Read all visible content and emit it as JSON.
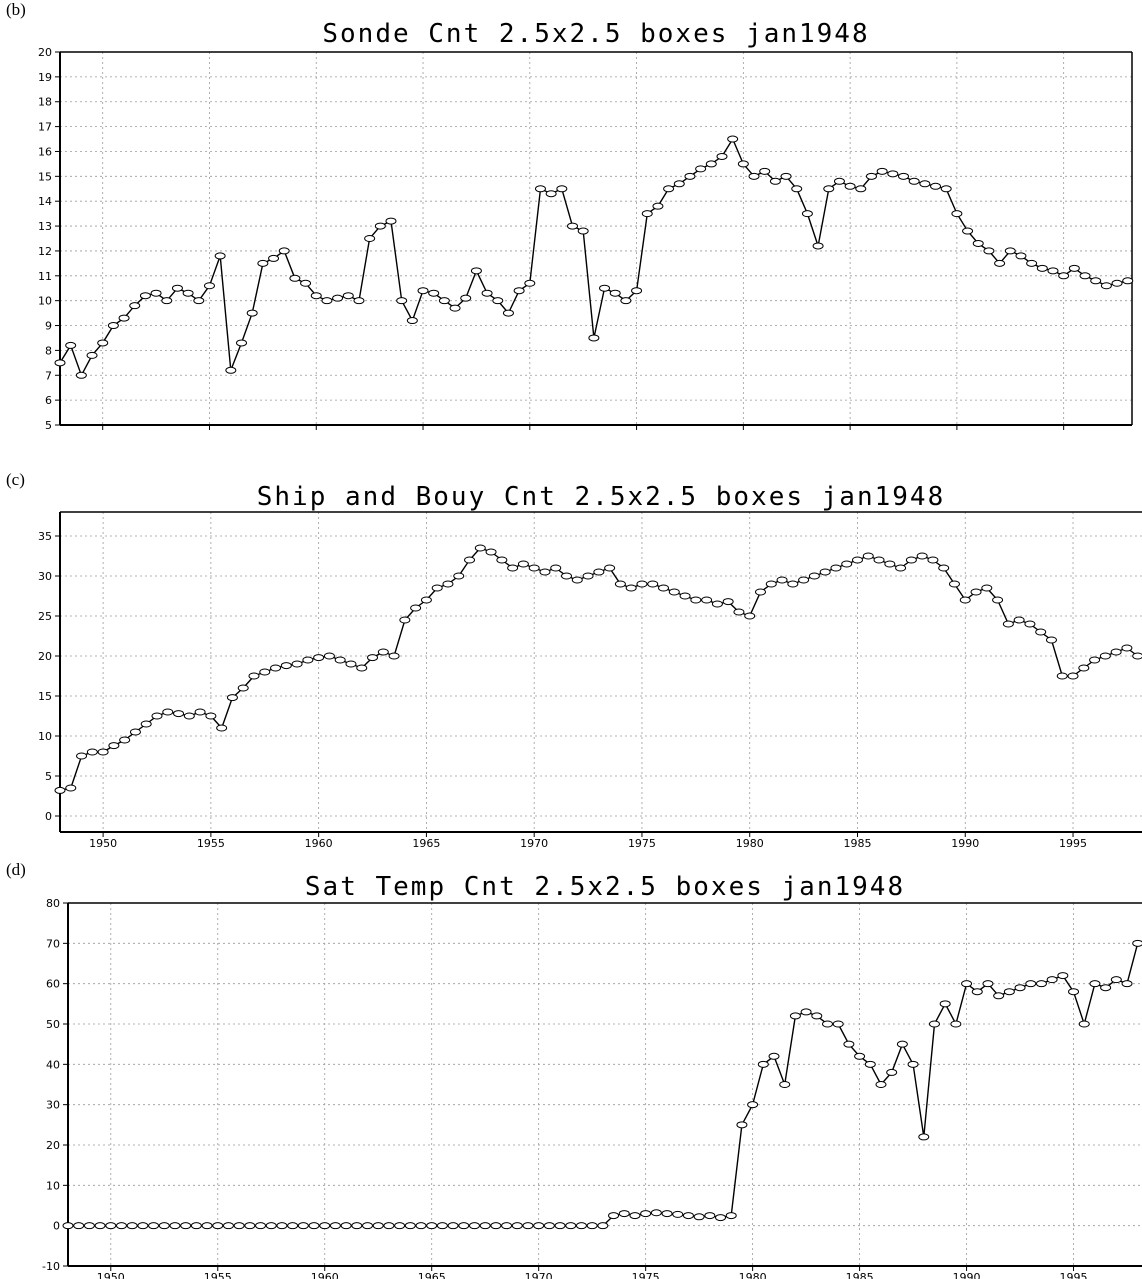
{
  "panels": {
    "b": {
      "label": "(b)"
    },
    "c": {
      "label": "(c)"
    },
    "d": {
      "label": "(d)"
    }
  },
  "chart_data": [
    {
      "type": "line",
      "title": "Sonde Cnt 2.5x2.5 boxes jan1948",
      "xlabel": "",
      "ylabel": "",
      "xlim": [
        1948,
        1998.2
      ],
      "ylim": [
        5,
        20
      ],
      "xticks": [
        1950,
        1955,
        1960,
        1965,
        1970,
        1975,
        1980,
        1985,
        1990,
        1995
      ],
      "yticks": [
        5,
        6,
        7,
        8,
        9,
        10,
        11,
        12,
        13,
        14,
        15,
        16,
        17,
        18,
        19,
        20
      ],
      "grid": true,
      "marker": "open-circle",
      "x": [
        1948.0,
        1948.5,
        1949.0,
        1949.5,
        1950.0,
        1950.5,
        1951.0,
        1951.5,
        1952.0,
        1952.5,
        1953.0,
        1953.5,
        1954.0,
        1954.5,
        1955.0,
        1955.5,
        1956.0,
        1956.5,
        1957.0,
        1957.5,
        1958.0,
        1958.5,
        1959.0,
        1959.5,
        1960.0,
        1960.5,
        1961.0,
        1961.5,
        1962.0,
        1962.5,
        1963.0,
        1963.5,
        1964.0,
        1964.5,
        1965.0,
        1965.5,
        1966.0,
        1966.5,
        1967.0,
        1967.5,
        1968.0,
        1968.5,
        1969.0,
        1969.5,
        1970.0,
        1970.5,
        1971.0,
        1971.5,
        1972.0,
        1972.5,
        1973.0,
        1973.5,
        1974.0,
        1974.5,
        1975.0,
        1975.5,
        1976.0,
        1976.5,
        1977.0,
        1977.5,
        1978.0,
        1978.5,
        1979.0,
        1979.5,
        1980.0,
        1980.5,
        1981.0,
        1981.5,
        1982.0,
        1982.5,
        1983.0,
        1983.5,
        1984.0,
        1984.5,
        1985.0,
        1985.5,
        1986.0,
        1986.5,
        1987.0,
        1987.5,
        1988.0,
        1988.5,
        1989.0,
        1989.5,
        1990.0,
        1990.5,
        1991.0,
        1991.5,
        1992.0,
        1992.5,
        1993.0,
        1993.5,
        1994.0,
        1994.5,
        1995.0,
        1995.5,
        1996.0,
        1996.5,
        1997.0,
        1997.5,
        1998.0
      ],
      "y": [
        7.5,
        8.2,
        7.0,
        7.8,
        8.3,
        9.0,
        9.3,
        9.8,
        10.2,
        10.3,
        10.0,
        10.5,
        10.3,
        10.0,
        10.6,
        11.8,
        7.2,
        8.3,
        9.5,
        11.5,
        11.7,
        12.0,
        10.9,
        10.7,
        10.2,
        10.0,
        10.1,
        10.2,
        10.0,
        12.5,
        13.0,
        13.2,
        10.0,
        9.2,
        10.4,
        10.3,
        10.0,
        9.7,
        10.1,
        11.2,
        10.3,
        10.0,
        9.5,
        10.4,
        10.7,
        14.5,
        14.3,
        14.5,
        13.0,
        12.8,
        8.5,
        10.5,
        10.3,
        10.0,
        10.4,
        13.5,
        13.8,
        14.5,
        14.7,
        15.0,
        15.3,
        15.5,
        15.8,
        16.5,
        15.5,
        15.0,
        15.2,
        14.8,
        15.0,
        14.5,
        13.5,
        12.2,
        14.5,
        14.8,
        14.6,
        14.5,
        15.0,
        15.2,
        15.1,
        15.0,
        14.8,
        14.7,
        14.6,
        14.5,
        13.5,
        12.8,
        12.3,
        12.0,
        11.5,
        12.0,
        11.8,
        11.5,
        11.3,
        11.2,
        11.0,
        11.3,
        11.0,
        10.8,
        10.6,
        10.7,
        10.8
      ]
    },
    {
      "type": "line",
      "title": "Ship and Bouy Cnt 2.5x2.5 boxes jan1948",
      "xlabel": "",
      "ylabel": "",
      "xlim": [
        1948,
        1998.2
      ],
      "ylim": [
        -2,
        38
      ],
      "xticks": [
        1950,
        1955,
        1960,
        1965,
        1970,
        1975,
        1980,
        1985,
        1990,
        1995
      ],
      "yticks": [
        0,
        5,
        10,
        15,
        20,
        25,
        30,
        35
      ],
      "grid": true,
      "marker": "open-circle",
      "x": [
        1948.0,
        1948.5,
        1949.0,
        1949.5,
        1950.0,
        1950.5,
        1951.0,
        1951.5,
        1952.0,
        1952.5,
        1953.0,
        1953.5,
        1954.0,
        1954.5,
        1955.0,
        1955.5,
        1956.0,
        1956.5,
        1957.0,
        1957.5,
        1958.0,
        1958.5,
        1959.0,
        1959.5,
        1960.0,
        1960.5,
        1961.0,
        1961.5,
        1962.0,
        1962.5,
        1963.0,
        1963.5,
        1964.0,
        1964.5,
        1965.0,
        1965.5,
        1966.0,
        1966.5,
        1967.0,
        1967.5,
        1968.0,
        1968.5,
        1969.0,
        1969.5,
        1970.0,
        1970.5,
        1971.0,
        1971.5,
        1972.0,
        1972.5,
        1973.0,
        1973.5,
        1974.0,
        1974.5,
        1975.0,
        1975.5,
        1976.0,
        1976.5,
        1977.0,
        1977.5,
        1978.0,
        1978.5,
        1979.0,
        1979.5,
        1980.0,
        1980.5,
        1981.0,
        1981.5,
        1982.0,
        1982.5,
        1983.0,
        1983.5,
        1984.0,
        1984.5,
        1985.0,
        1985.5,
        1986.0,
        1986.5,
        1987.0,
        1987.5,
        1988.0,
        1988.5,
        1989.0,
        1989.5,
        1990.0,
        1990.5,
        1991.0,
        1991.5,
        1992.0,
        1992.5,
        1993.0,
        1993.5,
        1994.0,
        1994.5,
        1995.0,
        1995.5,
        1996.0,
        1996.5,
        1997.0,
        1997.5,
        1998.0
      ],
      "y": [
        3.2,
        3.5,
        7.5,
        8.0,
        8.0,
        8.8,
        9.5,
        10.5,
        11.5,
        12.5,
        13.0,
        12.8,
        12.5,
        13.0,
        12.5,
        11.0,
        14.8,
        16.0,
        17.5,
        18.0,
        18.5,
        18.8,
        19.0,
        19.5,
        19.8,
        20.0,
        19.5,
        19.0,
        18.5,
        19.8,
        20.5,
        20.0,
        24.5,
        26.0,
        27.0,
        28.5,
        29.0,
        30.0,
        32.0,
        33.5,
        33.0,
        32.0,
        31.0,
        31.5,
        31.0,
        30.5,
        31.0,
        30.0,
        29.5,
        30.0,
        30.5,
        31.0,
        29.0,
        28.5,
        29.0,
        29.0,
        28.5,
        28.0,
        27.5,
        27.0,
        27.0,
        26.5,
        26.8,
        25.5,
        25.0,
        28.0,
        29.0,
        29.5,
        29.0,
        29.5,
        30.0,
        30.5,
        31.0,
        31.5,
        32.0,
        32.5,
        32.0,
        31.5,
        31.0,
        32.0,
        32.5,
        32.0,
        31.0,
        29.0,
        27.0,
        28.0,
        28.5,
        27.0,
        24.0,
        24.5,
        24.0,
        23.0,
        22.0,
        17.5,
        17.5,
        18.5,
        19.5,
        20.0,
        20.5,
        21.0,
        20.0
      ]
    },
    {
      "type": "line",
      "title": "Sat Temp Cnt 2.5x2.5 boxes jan1948",
      "xlabel": "",
      "ylabel": "",
      "xlim": [
        1948,
        1998.2
      ],
      "ylim": [
        -10,
        80
      ],
      "xticks": [
        1950,
        1955,
        1960,
        1965,
        1970,
        1975,
        1980,
        1985,
        1990,
        1995
      ],
      "yticks": [
        -10,
        0,
        10,
        20,
        30,
        40,
        50,
        60,
        70,
        80
      ],
      "grid": true,
      "marker": "open-circle",
      "x": [
        1948.0,
        1948.5,
        1949.0,
        1949.5,
        1950.0,
        1950.5,
        1951.0,
        1951.5,
        1952.0,
        1952.5,
        1953.0,
        1953.5,
        1954.0,
        1954.5,
        1955.0,
        1955.5,
        1956.0,
        1956.5,
        1957.0,
        1957.5,
        1958.0,
        1958.5,
        1959.0,
        1959.5,
        1960.0,
        1960.5,
        1961.0,
        1961.5,
        1962.0,
        1962.5,
        1963.0,
        1963.5,
        1964.0,
        1964.5,
        1965.0,
        1965.5,
        1966.0,
        1966.5,
        1967.0,
        1967.5,
        1968.0,
        1968.5,
        1969.0,
        1969.5,
        1970.0,
        1970.5,
        1971.0,
        1971.5,
        1972.0,
        1972.5,
        1973.0,
        1973.5,
        1974.0,
        1974.5,
        1975.0,
        1975.5,
        1976.0,
        1976.5,
        1977.0,
        1977.5,
        1978.0,
        1978.5,
        1979.0,
        1979.5,
        1980.0,
        1980.5,
        1981.0,
        1981.5,
        1982.0,
        1982.5,
        1983.0,
        1983.5,
        1984.0,
        1984.5,
        1985.0,
        1985.5,
        1986.0,
        1986.5,
        1987.0,
        1987.5,
        1988.0,
        1988.5,
        1989.0,
        1989.5,
        1990.0,
        1990.5,
        1991.0,
        1991.5,
        1992.0,
        1992.5,
        1993.0,
        1993.5,
        1994.0,
        1994.5,
        1995.0,
        1995.5,
        1996.0,
        1996.5,
        1997.0,
        1997.5,
        1998.0
      ],
      "y": [
        0,
        0,
        0,
        0,
        0,
        0,
        0,
        0,
        0,
        0,
        0,
        0,
        0,
        0,
        0,
        0,
        0,
        0,
        0,
        0,
        0,
        0,
        0,
        0,
        0,
        0,
        0,
        0,
        0,
        0,
        0,
        0,
        0,
        0,
        0,
        0,
        0,
        0,
        0,
        0,
        0,
        0,
        0,
        0,
        0,
        0,
        0,
        0,
        0,
        0,
        0,
        2.5,
        3.0,
        2.5,
        3.0,
        3.2,
        3.0,
        2.8,
        2.5,
        2.2,
        2.5,
        2.0,
        2.5,
        25.0,
        30.0,
        40.0,
        42.0,
        35.0,
        52.0,
        53.0,
        52.0,
        50.0,
        50.0,
        45.0,
        42.0,
        40.0,
        35.0,
        38.0,
        45.0,
        40.0,
        22.0,
        50.0,
        55.0,
        50.0,
        60.0,
        58.0,
        60.0,
        57.0,
        58.0,
        59.0,
        60.0,
        60.0,
        61.0,
        62.0,
        58.0,
        50.0,
        60.0,
        59.0,
        61.0,
        60.0,
        70.0
      ]
    }
  ]
}
